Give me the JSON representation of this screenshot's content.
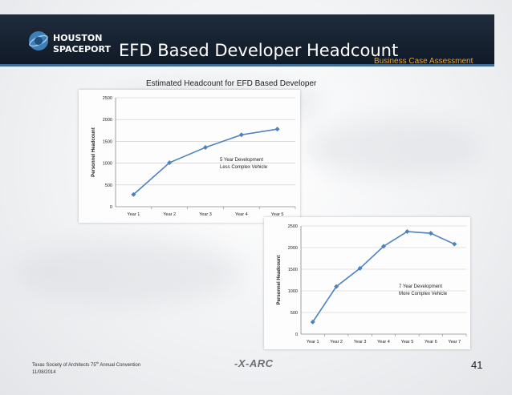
{
  "header": {
    "logo_line1": "HOUSTON",
    "logo_line2": "SPACEPORT",
    "title": "EFD Based Developer Headcount",
    "subtitle": "Business Case Assessment"
  },
  "chart_heading": "Estimated Headcount for EFD Based Developer",
  "colors": {
    "series": "#4f81bd",
    "header_bg": "#16212f",
    "subtitle": "#e3a33b",
    "header_rule": "#3f6c95"
  },
  "chart_data": [
    {
      "type": "line",
      "categories": [
        "Year 1",
        "Year 2",
        "Year 3",
        "Year 4",
        "Year 5"
      ],
      "series": [
        {
          "values": [
            280,
            1010,
            1360,
            1650,
            1780
          ]
        }
      ],
      "ylabel": "Personnel Headcount",
      "ylim": [
        0,
        2500
      ],
      "yticks": [
        "0",
        "500",
        "1000",
        "1500",
        "2000",
        "2500"
      ],
      "grid": true,
      "annotation": [
        "5 Year Development",
        "Less Complex Vehicle"
      ]
    },
    {
      "type": "line",
      "categories": [
        "Year 1",
        "Year 2",
        "Year 3",
        "Year 4",
        "Year 5",
        "Year 6",
        "Year 7"
      ],
      "series": [
        {
          "values": [
            280,
            1100,
            1520,
            2030,
            2370,
            2330,
            2080
          ]
        }
      ],
      "ylabel": "Personnel Headcount",
      "ylim": [
        0,
        2500
      ],
      "yticks": [
        "0",
        "500",
        "1000",
        "1500",
        "2000",
        "2500"
      ],
      "grid": true,
      "annotation": [
        "7 Year Development",
        "More Complex Vehicle"
      ]
    }
  ],
  "footer": {
    "org_line": "Texas Society of Architects 75",
    "org_sup": "th",
    "org_rest": " Annual Convention",
    "date": "11/08/2014",
    "logo_text": "-X-ARC",
    "page_number": "41"
  }
}
